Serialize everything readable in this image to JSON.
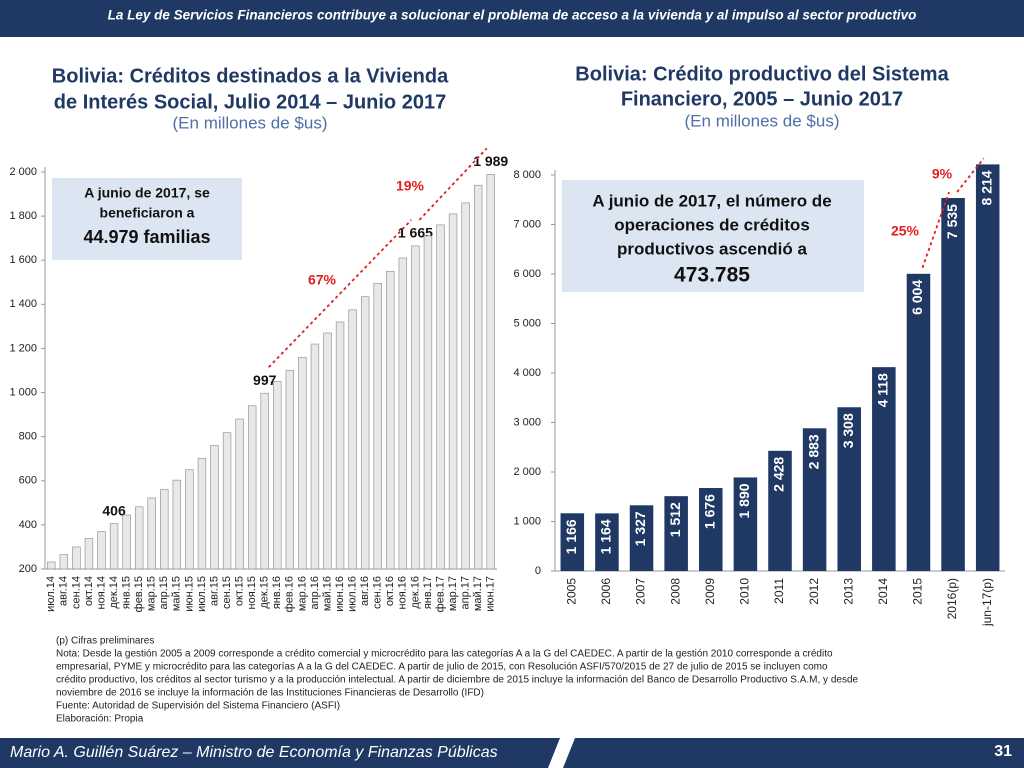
{
  "header": {
    "title": "La Ley de Servicios Financieros contribuye a solucionar el problema de acceso a la vivienda y al impulso al sector productivo"
  },
  "chart_data": [
    {
      "type": "bar",
      "title": [
        "Bolivia: Créditos destinados a la Vivienda",
        "de Interés Social, Julio 2014 – Junio 2017"
      ],
      "subtitle": "(En millones de $us)",
      "categories": [
        "июл.14",
        "авг.14",
        "сен.14",
        "окт.14",
        "ноя.14",
        "дек.14",
        "янв.15",
        "фев.15",
        "мар.15",
        "апр.15",
        "май.15",
        "июн.15",
        "июл.15",
        "авг.15",
        "сен.15",
        "окт.15",
        "ноя.15",
        "дек.15",
        "янв.16",
        "фев.16",
        "мар.16",
        "апр.16",
        "май.16",
        "июн.16",
        "июл.16",
        "авг.16",
        "сен.16",
        "окт.16",
        "ноя.16",
        "дек.16",
        "янв.17",
        "фев.17",
        "мар.17",
        "апр.17",
        "май.17",
        "июн.17"
      ],
      "values": [
        232,
        265,
        300,
        338,
        370,
        406,
        445,
        482,
        522,
        560,
        603,
        650,
        702,
        760,
        818,
        880,
        940,
        997,
        1050,
        1100,
        1160,
        1220,
        1270,
        1320,
        1375,
        1435,
        1495,
        1550,
        1610,
        1665,
        1710,
        1760,
        1810,
        1860,
        1940,
        1989
      ],
      "value_labels": [
        null,
        null,
        null,
        null,
        null,
        "406",
        null,
        null,
        null,
        null,
        null,
        null,
        null,
        null,
        null,
        null,
        null,
        "997",
        null,
        null,
        null,
        null,
        null,
        null,
        null,
        null,
        null,
        null,
        null,
        "1 665",
        null,
        null,
        null,
        null,
        null,
        "1 989"
      ],
      "color": "#e8e8e8",
      "ylim": [
        200,
        2000
      ],
      "yticks": [
        200,
        400,
        600,
        800,
        {
          "value": 1000,
          "label": "1 000"
        },
        {
          "value": 1200,
          "label": "1 200"
        },
        {
          "value": 1400,
          "label": "1 400"
        },
        {
          "value": 1600,
          "label": "1 600"
        },
        {
          "value": 1800,
          "label": "1 800"
        },
        {
          "value": 2000,
          "label": "2 000"
        }
      ],
      "annotations": [
        {
          "text": "67%"
        },
        {
          "text": "19%"
        }
      ],
      "note_box": [
        "A junio de 2017, se",
        "beneficiaron a",
        "44.979 familias"
      ]
    },
    {
      "type": "bar",
      "title": [
        "Bolivia: Crédito productivo  del Sistema",
        "Financiero, 2005 – Junio 2017"
      ],
      "subtitle": "(En millones de $us)",
      "categories": [
        "2005",
        "2006",
        "2007",
        "2008",
        "2009",
        "2010",
        "2011",
        "2012",
        "2013",
        "2014",
        "2015",
        "2016(p)",
        "jun-17(p)"
      ],
      "values": [
        1166,
        1164,
        1327,
        1512,
        1676,
        1890,
        2428,
        2883,
        3308,
        4118,
        6004,
        7535,
        8214
      ],
      "value_labels": [
        "1 166",
        "1 164",
        "1 327",
        "1 512",
        "1 676",
        "1 890",
        "2 428",
        "2 883",
        "3 308",
        "4 118",
        "6 004",
        "7 535",
        "8 214"
      ],
      "color": "#1f3864",
      "ylim": [
        0,
        8000
      ],
      "yticks": [
        0,
        {
          "value": 1000,
          "label": "1 000"
        },
        {
          "value": 2000,
          "label": "2 000"
        },
        {
          "value": 3000,
          "label": "3 000"
        },
        {
          "value": 4000,
          "label": "4 000"
        },
        {
          "value": 5000,
          "label": "5 000"
        },
        {
          "value": 6000,
          "label": "6 000"
        },
        {
          "value": 7000,
          "label": "7 000"
        },
        {
          "value": 8000,
          "label": "8 000"
        }
      ],
      "annotations": [
        {
          "text": "25%"
        },
        {
          "text": "9%"
        }
      ],
      "note_box": [
        "A junio de 2017, el número de",
        "operaciones de créditos",
        "productivos ascendió a",
        "473.785"
      ]
    }
  ],
  "notes": [
    "(p) Cifras preliminares",
    "Nota: Desde la gestión 2005 a 2009 corresponde a crédito comercial y microcrédito para las categorías A a la G del CAEDEC. A partir de la gestión 2010 corresponde a crédito",
    "empresarial, PYME y microcrédito para las categorías A a la G del CAEDEC. A partir de julio de 2015, con Resolución ASFI/570/2015 de 27 de julio de 2015 se incluyen como",
    "crédito productivo, los créditos al sector turismo y a la producción intelectual. A partir de diciembre de 2015  incluye la información del Banco de Desarrollo Productivo S.A.M, y desde",
    "noviembre de 2016 se incluye la información de las Instituciones Financieras de Desarrollo (IFD)",
    "Fuente: Autoridad de Supervisión del Sistema Financiero (ASFI)",
    "Elaboración: Propia"
  ],
  "footer": {
    "author": "Mario A. Guillén Suárez – Ministro de Economía y Finanzas Públicas",
    "page": "31"
  }
}
